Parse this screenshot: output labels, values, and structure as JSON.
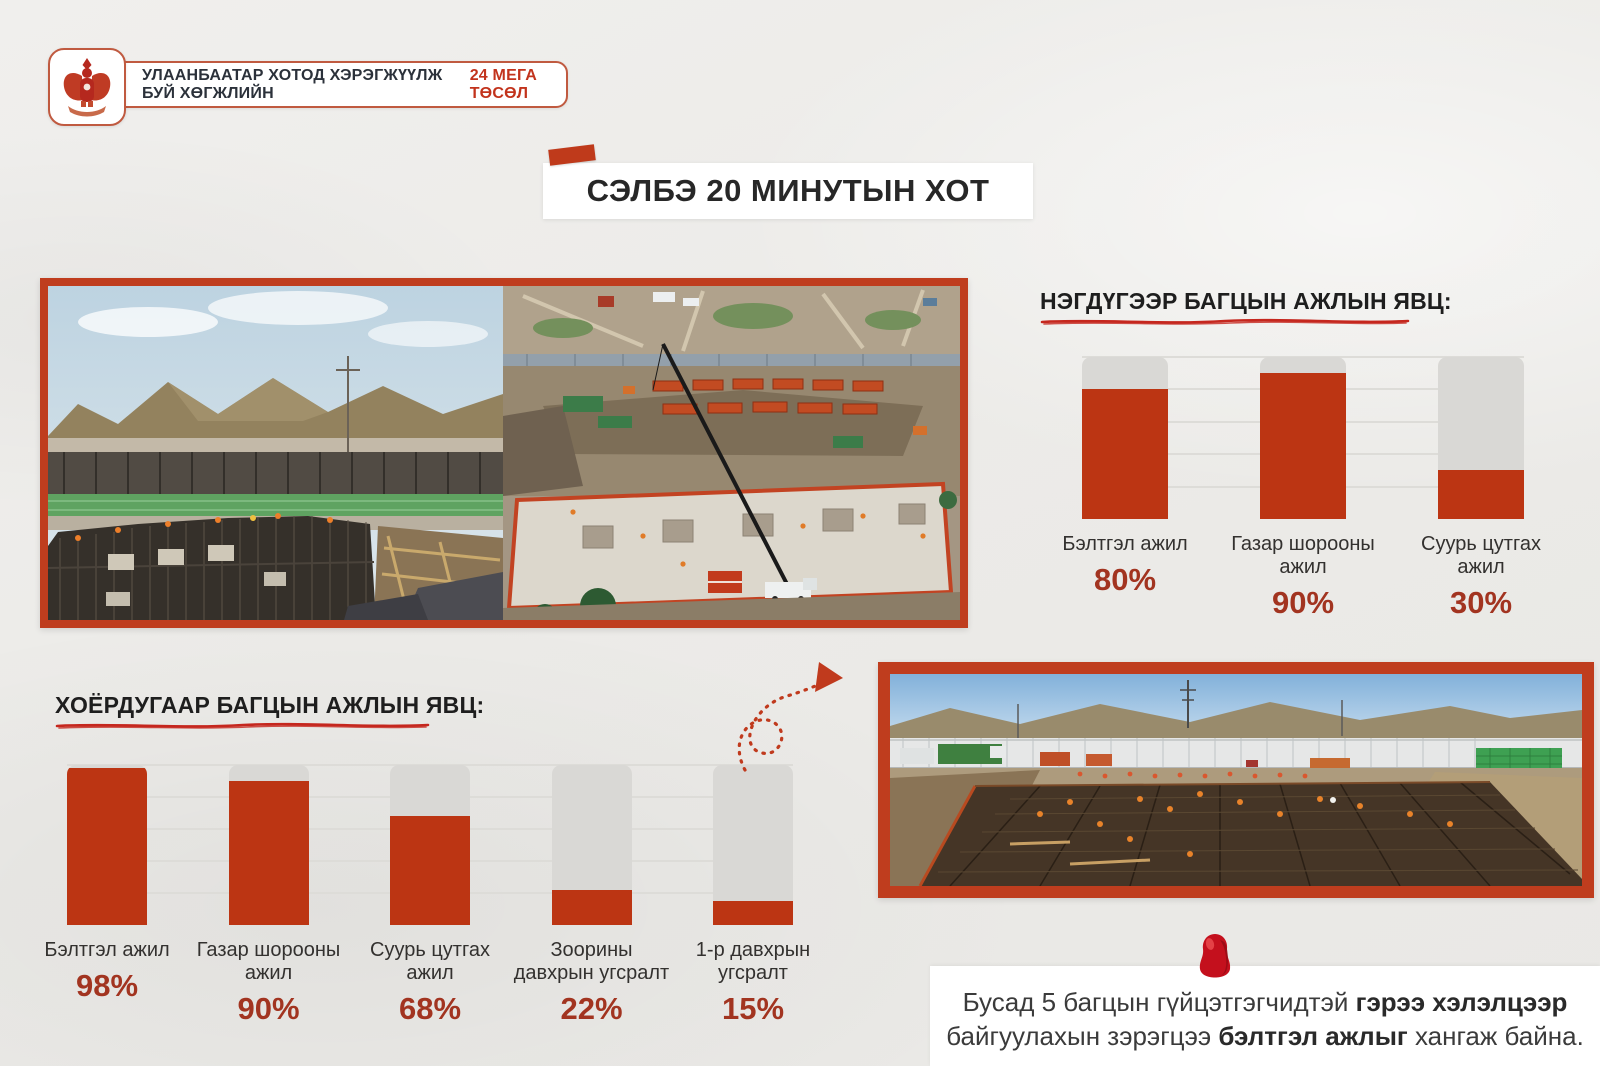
{
  "header": {
    "logo_icon": "ulaanbaatar-city-emblem",
    "text": "УЛААНБААТАР ХОТОД ХЭРЭГЖҮҮЛЖ БУЙ ХӨГЖЛИЙН",
    "highlight": "24 МЕГА ТӨСӨЛ"
  },
  "title": "СЭЛБЭ 20 МИНУТЫН ХОТ",
  "chart_data": [
    {
      "type": "bar",
      "title": "НЭГДҮГЭЭР БАГЦЫН АЖЛЫН ЯВЦ:",
      "categories": [
        "Бэлтгэл ажил",
        "Газар шорооны ажил",
        "Суурь цутгах ажил"
      ],
      "category_lines": [
        [
          "Бэлтгэл ажил"
        ],
        [
          "Газар шорооны",
          "ажил"
        ],
        [
          "Суурь цутгах",
          "ажил"
        ]
      ],
      "values": [
        80,
        90,
        30
      ],
      "unit": "%",
      "ylim": [
        0,
        100
      ],
      "grid": true,
      "gridline_step": 20,
      "bar_color": "#bc3513",
      "track_color": "#d9d8d5",
      "value_color": "#a23420",
      "legend_position": "none"
    },
    {
      "type": "bar",
      "title": "ХОЁРДУГААР БАГЦЫН АЖЛЫН ЯВЦ:",
      "categories": [
        "Бэлтгэл ажил",
        "Газар шорооны ажил",
        "Суурь цутгах ажил",
        "Зоорины давхрын угсралт",
        "1-р давхрын угсралт"
      ],
      "category_lines": [
        [
          "Бэлтгэл ажил"
        ],
        [
          "Газар шорооны",
          "ажил"
        ],
        [
          "Суурь цутгах",
          "ажил"
        ],
        [
          "Зоорины",
          "давхрын угсралт"
        ],
        [
          "1-р давхрын",
          "угсралт"
        ]
      ],
      "values": [
        98,
        90,
        68,
        22,
        15
      ],
      "unit": "%",
      "ylim": [
        0,
        100
      ],
      "grid": true,
      "gridline_step": 20,
      "bar_color": "#bc3513",
      "track_color": "#d9d8d5",
      "value_color": "#a23420",
      "legend_position": "none"
    }
  ],
  "note": {
    "lines": [
      [
        {
          "text": "Бусад 5 багцын гүйцэтгэгчидтэй ",
          "bold": false
        },
        {
          "text": "гэрээ хэлэлцээр",
          "bold": true
        }
      ],
      [
        {
          "text": "байгуулахын зэрэгцээ ",
          "bold": false
        },
        {
          "text": "бэлтгэл ажлыг",
          "bold": true
        },
        {
          "text": " хангаж байна.",
          "bold": false
        }
      ]
    ]
  },
  "icons": {
    "pin": "red-pushpin",
    "arrow": "curly-dashed-arrow",
    "emblem": "ulaanbaatar-city-emblem"
  },
  "colors": {
    "accent_red": "#bf3d1e",
    "bar_red": "#bc3513",
    "underline_red": "#c5271e",
    "pin_red": "#c4101d",
    "background": "#edecea"
  }
}
